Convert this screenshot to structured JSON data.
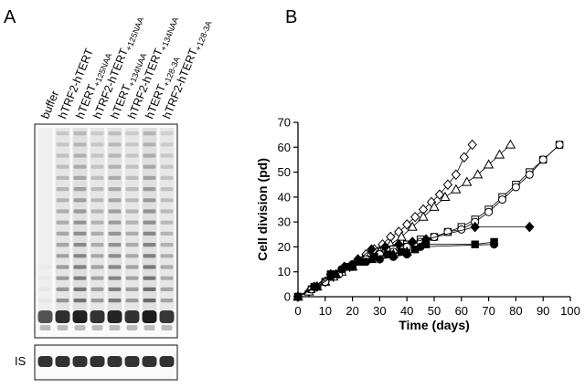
{
  "figure": {
    "panel_a_label": "A",
    "panel_b_label": "B",
    "gel": {
      "lanes": [
        {
          "main": "buffer",
          "sub": ""
        },
        {
          "main": "hTRF2-hTERT",
          "sub": ""
        },
        {
          "main": "hTERT",
          "sub": "+125NAA"
        },
        {
          "main": "hTRF2-hTERT",
          "sub": "+125NAA"
        },
        {
          "main": "hTERT",
          "sub": "+134NAA"
        },
        {
          "main": "hTRF2-hTERT",
          "sub": "+134NAA"
        },
        {
          "main": "hTERT",
          "sub": "+128-3A"
        },
        {
          "main": "hTRF2-hTERT",
          "sub": "+128-3A"
        }
      ],
      "lower_panel_label": "IS",
      "lane_intensity": [
        0.05,
        0.55,
        0.75,
        0.5,
        0.7,
        0.5,
        0.8,
        0.45
      ]
    }
  },
  "chart_data": {
    "type": "scatter",
    "title": "",
    "xlabel": "Time (days)",
    "ylabel": "Cell division (pd)",
    "xlim": [
      0,
      100
    ],
    "ylim": [
      0,
      70
    ],
    "xticks": [
      0,
      10,
      20,
      30,
      40,
      50,
      60,
      70,
      80,
      90,
      100
    ],
    "yticks": [
      0,
      10,
      20,
      30,
      40,
      50,
      60,
      70
    ],
    "grid": false,
    "legend": "none",
    "series": [
      {
        "marker": "open-diamond",
        "x": [
          0,
          4,
          7,
          10,
          13,
          16,
          19,
          22,
          25,
          28,
          31,
          34,
          37,
          40,
          43,
          46,
          49,
          52,
          55,
          58,
          61,
          64
        ],
        "y": [
          0,
          2,
          4,
          6,
          8,
          10,
          12,
          15,
          17,
          19,
          21,
          24,
          26,
          29,
          32,
          35,
          38,
          41,
          45,
          49,
          56,
          61
        ]
      },
      {
        "marker": "open-triangle",
        "x": [
          0,
          4,
          7,
          10,
          13,
          16,
          20,
          23,
          26,
          30,
          34,
          38,
          42,
          46,
          50,
          54,
          58,
          62,
          66,
          70,
          74,
          78
        ],
        "y": [
          0,
          2,
          4,
          6,
          8,
          10,
          12,
          14,
          16,
          18,
          21,
          24,
          28,
          32,
          36,
          40,
          43,
          46,
          49,
          53,
          57,
          61
        ]
      },
      {
        "marker": "open-square",
        "x": [
          0,
          5,
          10,
          14,
          20,
          25,
          30,
          35,
          40,
          45,
          50,
          55,
          60,
          65,
          70,
          75,
          80,
          85,
          90,
          96
        ],
        "y": [
          0,
          3,
          6,
          9,
          12,
          15,
          17,
          19,
          21,
          23,
          24,
          26,
          28,
          31,
          35,
          40,
          45,
          50,
          55,
          61
        ]
      },
      {
        "marker": "open-circle",
        "x": [
          0,
          5,
          10,
          15,
          20,
          25,
          30,
          35,
          40,
          45,
          50,
          55,
          60,
          65,
          70,
          75,
          80,
          85,
          90,
          96
        ],
        "y": [
          0,
          3,
          6,
          9,
          12,
          15,
          17,
          18,
          20,
          22,
          24,
          26,
          27,
          30,
          34,
          39,
          44,
          49,
          55,
          61
        ]
      },
      {
        "marker": "filled-diamond",
        "x": [
          0,
          6,
          12,
          17,
          22,
          27,
          32,
          37,
          42,
          47,
          65,
          85
        ],
        "y": [
          0,
          4,
          9,
          12,
          15,
          19,
          20,
          21,
          22,
          23,
          28,
          28
        ]
      },
      {
        "marker": "filled-square",
        "x": [
          0,
          6,
          12,
          18,
          23,
          28,
          33,
          38,
          43,
          47,
          65,
          72
        ],
        "y": [
          0,
          4,
          9,
          12,
          14,
          16,
          17,
          18,
          19,
          21,
          21,
          22
        ]
      },
      {
        "marker": "filled-circle",
        "x": [
          0,
          6,
          12,
          16,
          20,
          25,
          30,
          35,
          40,
          45,
          72
        ],
        "y": [
          0,
          4,
          8,
          11,
          13,
          14,
          15,
          16,
          17,
          20,
          21
        ]
      },
      {
        "marker": "filled-triangle",
        "x": [
          0,
          7,
          14,
          20,
          27,
          35,
          40,
          46
        ],
        "y": [
          0,
          4,
          9,
          12,
          15,
          17,
          18,
          21
        ]
      }
    ]
  }
}
